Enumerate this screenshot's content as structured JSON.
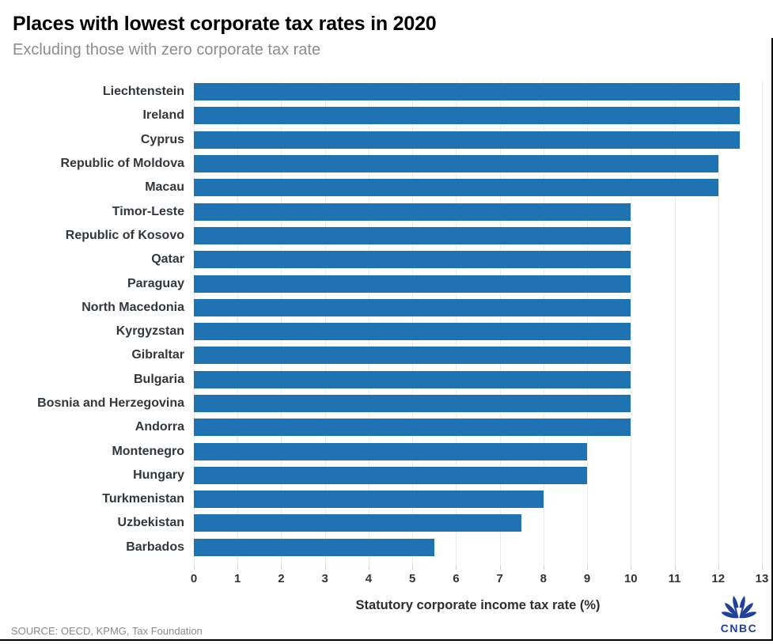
{
  "header": {
    "title": "Places with lowest corporate tax rates in 2020",
    "subtitle": "Excluding those with zero corporate tax rate"
  },
  "chart_data": {
    "type": "bar",
    "orientation": "horizontal",
    "title": "Places with lowest corporate tax rates in 2020",
    "subtitle": "Excluding those with zero corporate tax rate",
    "categories": [
      "Liechtenstein",
      "Ireland",
      "Cyprus",
      "Republic of Moldova",
      "Macau",
      "Timor-Leste",
      "Republic of Kosovo",
      "Qatar",
      "Paraguay",
      "North Macedonia",
      "Kyrgyzstan",
      "Gibraltar",
      "Bulgaria",
      "Bosnia and Herzegovina",
      "Andorra",
      "Montenegro",
      "Hungary",
      "Turkmenistan",
      "Uzbekistan",
      "Barbados"
    ],
    "values": [
      12.5,
      12.5,
      12.5,
      12,
      12,
      10,
      10,
      10,
      10,
      10,
      10,
      10,
      10,
      10,
      10,
      9,
      9,
      8,
      7.5,
      5.5
    ],
    "xlabel": "Statutory corporate income tax rate (%)",
    "xlim": [
      0,
      13
    ],
    "xticks": [
      "0",
      "1",
      "2",
      "3",
      "4",
      "5",
      "6",
      "7",
      "8",
      "9",
      "10",
      "11",
      "12",
      "13"
    ],
    "bar_color": "#1f73b2",
    "gridline_color": "#ececec",
    "grid": "vertical",
    "legend_position": "none"
  },
  "footer": {
    "source": "SOURCE: OECD, KPMG, Tax Foundation",
    "logo_text": "CNBC",
    "logo_color": "#21409a"
  }
}
